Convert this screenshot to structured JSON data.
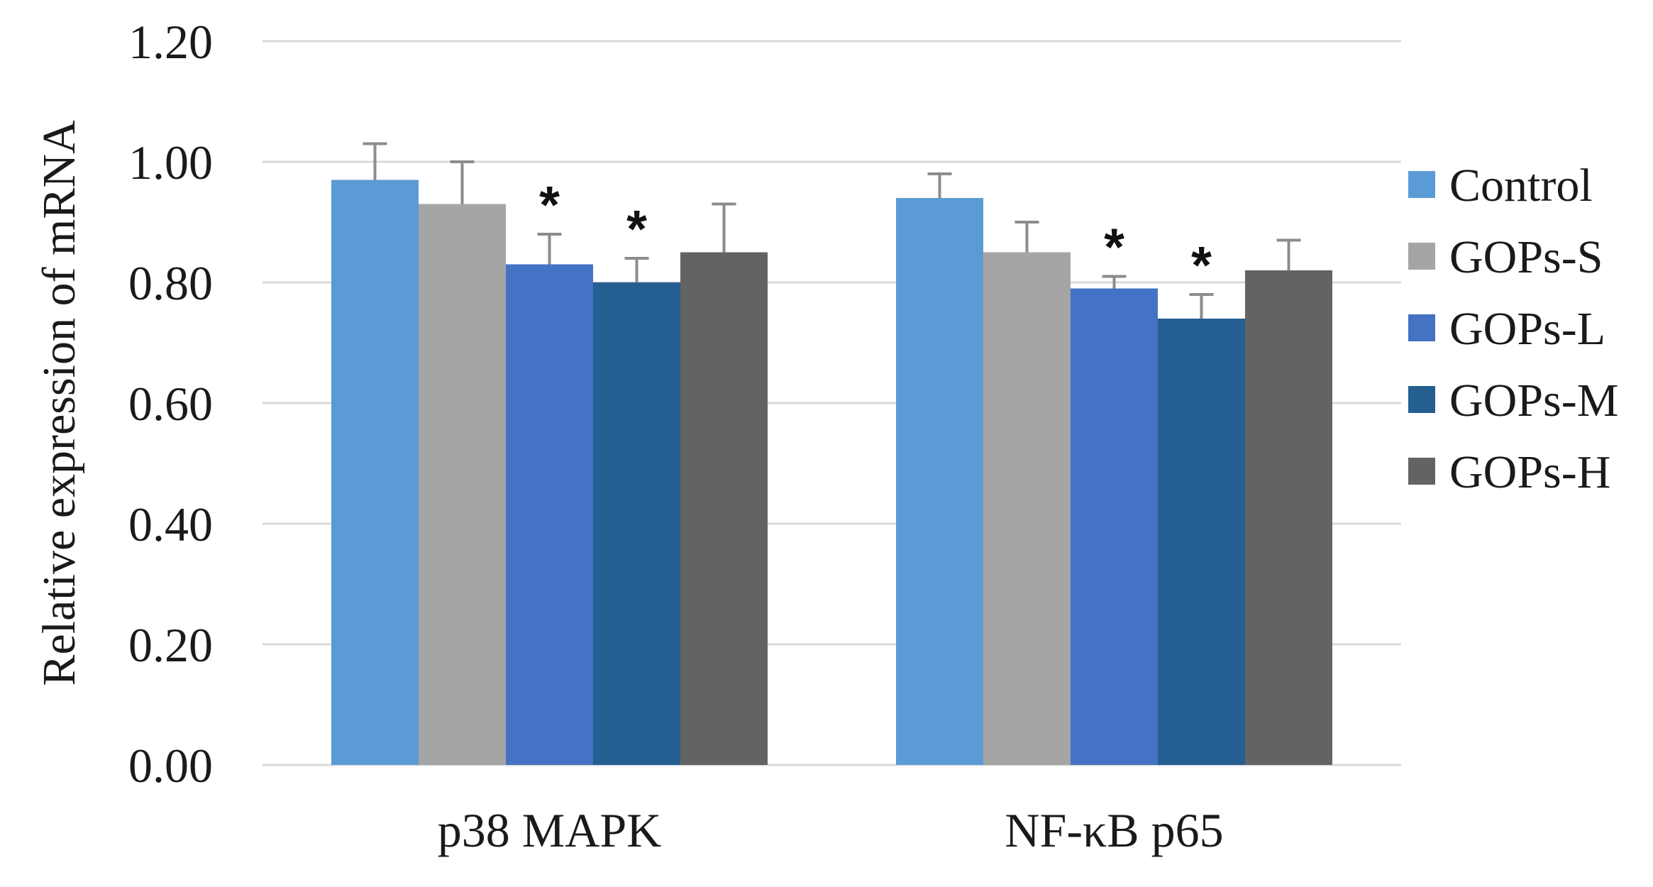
{
  "chart_data": {
    "type": "bar",
    "title": "",
    "xlabel": "",
    "ylabel": "Relative expression of mRNA",
    "ylim": [
      0,
      1.2
    ],
    "yticks": [
      "0.00",
      "0.20",
      "0.40",
      "0.60",
      "0.80",
      "1.00",
      "1.20"
    ],
    "categories": [
      "p38 MAPK",
      "NF-κB p65"
    ],
    "grid": true,
    "legend_position": "right",
    "series": [
      {
        "name": "Control",
        "color": "#5b9bd5",
        "values": [
          0.97,
          0.94
        ],
        "errors": [
          0.06,
          0.04
        ],
        "significant": [
          false,
          false
        ]
      },
      {
        "name": "GOPs-S",
        "color": "#a5a5a5",
        "values": [
          0.93,
          0.85
        ],
        "errors": [
          0.07,
          0.05
        ],
        "significant": [
          false,
          false
        ]
      },
      {
        "name": "GOPs-L",
        "color": "#4472c4",
        "values": [
          0.83,
          0.79
        ],
        "errors": [
          0.05,
          0.02
        ],
        "significant": [
          true,
          true
        ]
      },
      {
        "name": "GOPs-M",
        "color": "#255e91",
        "values": [
          0.8,
          0.74
        ],
        "errors": [
          0.04,
          0.04
        ],
        "significant": [
          true,
          true
        ]
      },
      {
        "name": "GOPs-H",
        "color": "#636363",
        "values": [
          0.85,
          0.82
        ],
        "errors": [
          0.08,
          0.05
        ],
        "significant": [
          false,
          false
        ]
      }
    ],
    "significance_marker": "*",
    "error_bar_color": "#8c8c8c"
  }
}
